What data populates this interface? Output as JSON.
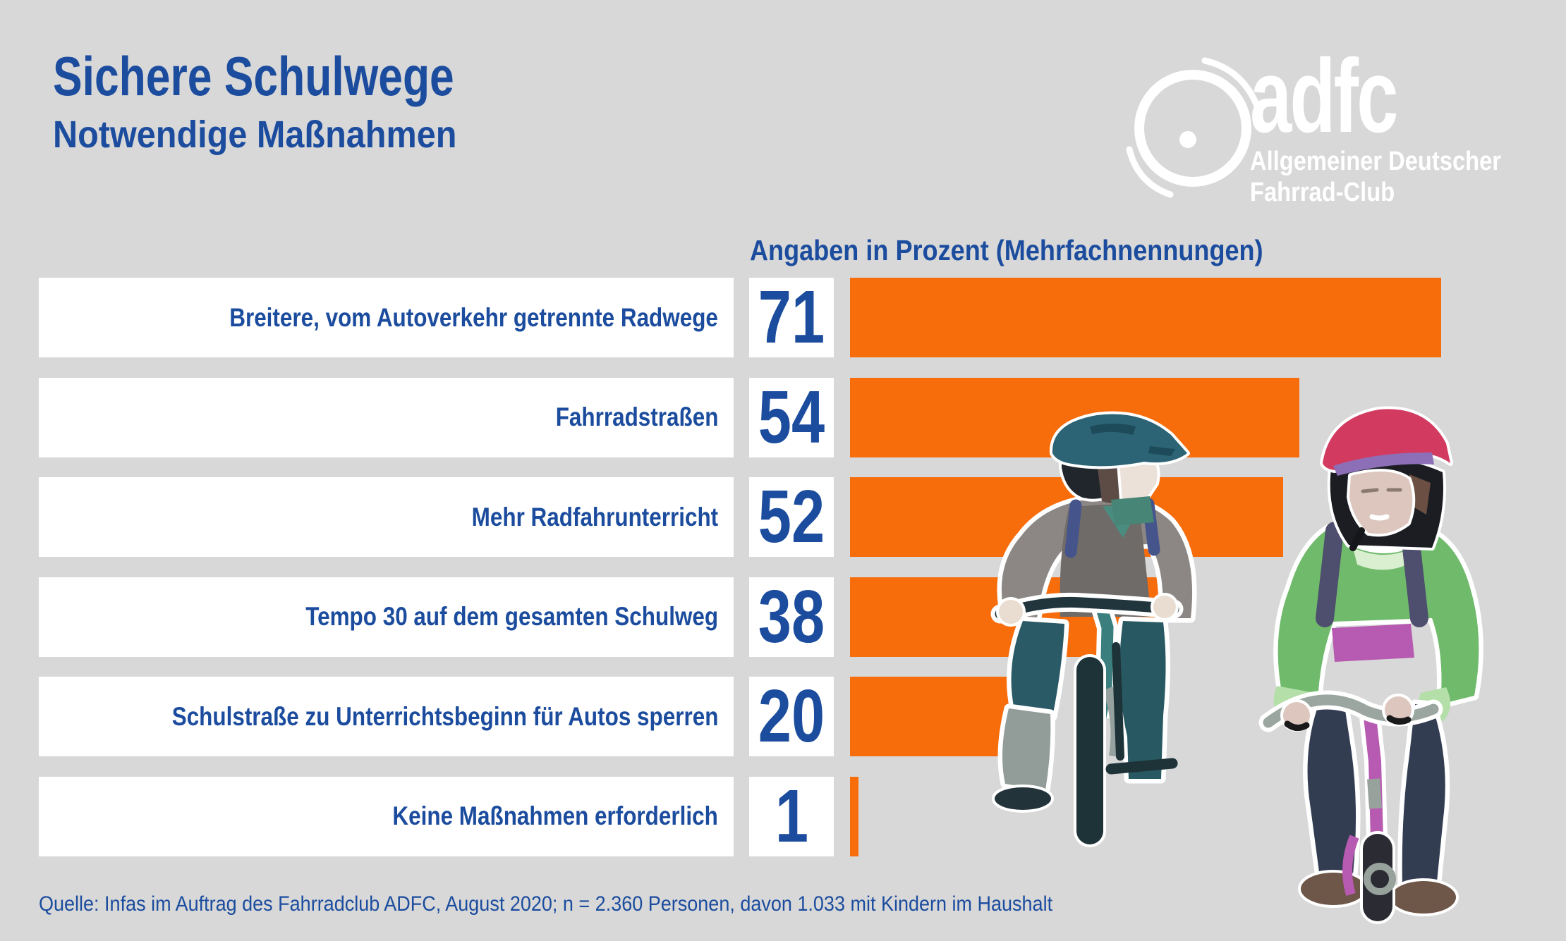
{
  "header": {
    "title": "Sichere Schulwege",
    "subtitle": "Notwendige Maßnahmen"
  },
  "logo": {
    "wordmark": "adfc",
    "tagline_line1": "Allgemeiner Deutscher",
    "tagline_line2": "Fahrrad-Club"
  },
  "chart_data": {
    "type": "bar",
    "orientation": "horizontal",
    "title": "Angaben in Prozent (Mehrfachnennungen)",
    "categories": [
      "Breitere, vom Autoverkehr getrennte Radwege",
      "Fahrradstraßen",
      "Mehr Radfahrunterricht",
      "Tempo 30 auf dem gesamten Schulweg",
      "Schulstraße zu Unterrichtsbeginn für Autos sperren",
      "Keine Maßnahmen erforderlich"
    ],
    "values": [
      71,
      54,
      52,
      38,
      20,
      1
    ],
    "xlim": [
      0,
      75
    ],
    "grid": false,
    "legend": "none",
    "value_labels_shown": true
  },
  "source": {
    "text": "Quelle: Infas im Auftrag des Fahrradclub ADFC, August 2020; n = 2.360 Personen, davon 1.033 mit Kindern im Haushalt"
  },
  "illustration": {
    "description": "Zwei Kinder auf Fahrrädern mit Helm und Rucksack"
  },
  "colors": {
    "background": "#d8d8d8",
    "box": "#ffffff",
    "text_blue": "#1b4c9e",
    "bar_orange": "#f76c0b",
    "logo_white": "#ffffff"
  }
}
